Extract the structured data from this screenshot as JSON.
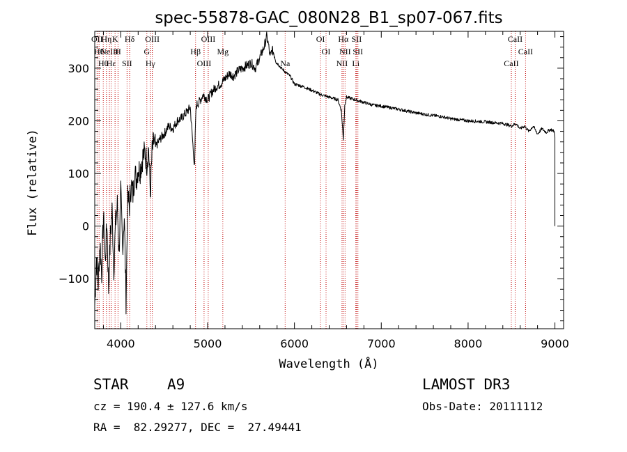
{
  "chart_data": {
    "type": "line",
    "title": "spec-55878-GAC_080N28_B1_sp07-067.fits",
    "xlabel": "Wavelength (Å)",
    "ylabel": "Flux (relative)",
    "xlim": [
      3700,
      9100
    ],
    "ylim": [
      -195,
      370
    ],
    "x_ticks": [
      4000,
      5000,
      6000,
      7000,
      8000,
      9000
    ],
    "x_tick_labels": [
      "4000",
      "5000",
      "6000",
      "7000",
      "8000",
      "9000"
    ],
    "y_ticks": [
      -100,
      0,
      100,
      200,
      300
    ],
    "y_tick_labels": [
      "−100",
      "0",
      "100",
      "200",
      "300"
    ],
    "series": [
      {
        "name": "spectrum",
        "x": [
          3700,
          3720,
          3740,
          3760,
          3780,
          3800,
          3820,
          3840,
          3860,
          3880,
          3900,
          3920,
          3940,
          3960,
          3980,
          4000,
          4020,
          4040,
          4060,
          4080,
          4100,
          4120,
          4140,
          4160,
          4180,
          4200,
          4220,
          4250,
          4280,
          4300,
          4320,
          4340,
          4360,
          4380,
          4400,
          4450,
          4500,
          4550,
          4600,
          4650,
          4700,
          4750,
          4800,
          4850,
          4861,
          4870,
          4900,
          4950,
          5000,
          5050,
          5100,
          5150,
          5200,
          5250,
          5300,
          5350,
          5400,
          5450,
          5500,
          5550,
          5600,
          5650,
          5680,
          5700,
          5720,
          5740,
          5760,
          5800,
          5850,
          5900,
          5950,
          6000,
          6100,
          6200,
          6300,
          6400,
          6500,
          6540,
          6563,
          6580,
          6600,
          6700,
          6800,
          6900,
          7000,
          7200,
          7400,
          7600,
          7700,
          7800,
          8000,
          8200,
          8400,
          8500,
          8550,
          8600,
          8650,
          8700,
          8750,
          8800,
          8850,
          8900,
          8950,
          8990,
          9000,
          9000
        ],
        "y": [
          -150,
          -60,
          -110,
          -30,
          -90,
          20,
          -70,
          10,
          -120,
          -20,
          30,
          -80,
          5,
          40,
          -50,
          60,
          -40,
          20,
          -140,
          50,
          40,
          80,
          60,
          100,
          90,
          110,
          105,
          130,
          140,
          120,
          150,
          60,
          140,
          160,
          150,
          165,
          175,
          190,
          185,
          200,
          205,
          215,
          225,
          110,
          200,
          230,
          235,
          250,
          240,
          255,
          265,
          270,
          280,
          290,
          285,
          295,
          300,
          305,
          310,
          300,
          320,
          340,
          360,
          345,
          320,
          335,
          330,
          310,
          300,
          292,
          285,
          270,
          265,
          258,
          250,
          245,
          240,
          220,
          165,
          230,
          245,
          240,
          235,
          230,
          228,
          222,
          215,
          210,
          208,
          204,
          200,
          198,
          195,
          190,
          195,
          185,
          190,
          180,
          190,
          175,
          185,
          178,
          184,
          180,
          170,
          0
        ]
      }
    ],
    "line_markers": [
      {
        "wl": 3727,
        "label": "OII"
      },
      {
        "wl": 3750,
        "label": "Hθ"
      },
      {
        "wl": 3798,
        "label": "Hθ"
      },
      {
        "wl": 3835,
        "label": "Hη"
      },
      {
        "wl": 3869,
        "label": "NeIII"
      },
      {
        "wl": 3889,
        "label": "Hε"
      },
      {
        "wl": 3934,
        "label": "K"
      },
      {
        "wl": 3968,
        "label": "H"
      },
      {
        "wl": 4072,
        "label": "SII"
      },
      {
        "wl": 4102,
        "label": "Hδ"
      },
      {
        "wl": 4300,
        "label": "G"
      },
      {
        "wl": 4341,
        "label": "Hγ"
      },
      {
        "wl": 4363,
        "label": "OIII"
      },
      {
        "wl": 4861,
        "label": "Hβ"
      },
      {
        "wl": 4959,
        "label": "OIII"
      },
      {
        "wl": 5007,
        "label": "OIII"
      },
      {
        "wl": 5175,
        "label": "Mg"
      },
      {
        "wl": 5893,
        "label": "Na"
      },
      {
        "wl": 6300,
        "label": "OI"
      },
      {
        "wl": 6364,
        "label": "OI"
      },
      {
        "wl": 6548,
        "label": "NII"
      },
      {
        "wl": 6563,
        "label": "Hα"
      },
      {
        "wl": 6583,
        "label": "NII"
      },
      {
        "wl": 6707,
        "label": "Li"
      },
      {
        "wl": 6716,
        "label": "SII"
      },
      {
        "wl": 6731,
        "label": "SII"
      },
      {
        "wl": 8498,
        "label": "CaII"
      },
      {
        "wl": 8542,
        "label": "CaII"
      },
      {
        "wl": 8662,
        "label": "CaII"
      }
    ]
  },
  "info": {
    "class": "STAR",
    "subclass": "A9",
    "survey": "LAMOST DR3",
    "cz": "cz = 190.4 ± 127.6 km/s",
    "obs_date": "Obs-Date: 20111112",
    "coords": "RA =  82.29277, DEC =  27.49441"
  }
}
